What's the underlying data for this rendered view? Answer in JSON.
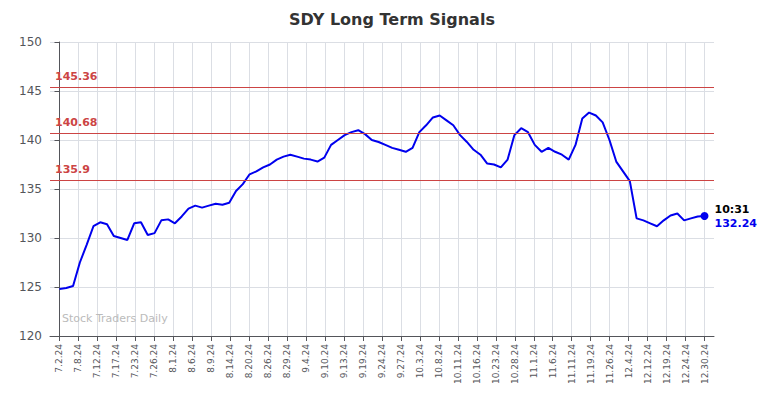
{
  "chart_data": {
    "type": "line",
    "title": "SDY Long Term Signals",
    "color": "#0000ee",
    "x": [
      0,
      0.357895,
      0.715789,
      1.073684,
      1.431579,
      1.789474,
      2.147368,
      2.505263,
      2.863158,
      3.221053,
      3.578947,
      3.936842,
      4.294737,
      4.652632,
      5.010526,
      5.368421,
      5.726316,
      6.084211,
      6.442105,
      6.8,
      7.157895,
      7.515789,
      7.873684,
      8.231579,
      8.589474,
      8.947368,
      9.305263,
      9.663158,
      10.021053,
      10.378947,
      10.736842,
      11.094737,
      11.452632,
      11.810526,
      12.168421,
      12.526316,
      12.884211,
      13.242105,
      13.6,
      13.957895,
      14.315789,
      14.673684,
      15.031579,
      15.389474,
      15.747368,
      16.105263,
      16.463158,
      16.821053,
      17.178947,
      17.536842,
      17.894737,
      18.252632,
      18.610526,
      18.968421,
      19.326316,
      19.684211,
      20.042105,
      20.4,
      20.757895,
      21.115789,
      21.473684,
      21.831579,
      22.189474,
      22.547368,
      22.905263,
      23.263158,
      23.621053,
      23.978947,
      24.336842,
      24.694737,
      25.052632,
      25.410526,
      25.768421,
      26.126316,
      26.484211,
      26.842105,
      27.2,
      27.557895,
      27.915789,
      28.273684,
      28.631579,
      28.989474,
      29.347368,
      29.705263,
      30.063158,
      30.421053,
      30.778947,
      31.136842,
      31.494737,
      31.852632,
      32.210526,
      32.568421,
      32.926316,
      33.284211,
      33.642105,
      34
    ],
    "values": [
      124.8,
      124.9,
      125.1,
      127.5,
      129.3,
      131.2,
      131.6,
      131.4,
      130.2,
      130.0,
      129.8,
      131.5,
      131.6,
      130.3,
      130.5,
      131.8,
      131.9,
      131.5,
      132.2,
      133.0,
      133.3,
      133.1,
      133.3,
      133.5,
      133.4,
      133.6,
      134.8,
      135.5,
      136.5,
      136.8,
      137.2,
      137.5,
      138.0,
      138.3,
      138.5,
      138.3,
      138.1,
      138.0,
      137.8,
      138.2,
      139.5,
      140.0,
      140.5,
      140.8,
      141.0,
      140.6,
      140.0,
      139.8,
      139.5,
      139.2,
      139.0,
      138.8,
      139.2,
      140.8,
      141.5,
      142.3,
      142.5,
      142.0,
      141.5,
      140.5,
      139.8,
      139.0,
      138.5,
      137.6,
      137.5,
      137.2,
      138.0,
      140.5,
      141.2,
      140.8,
      139.5,
      138.8,
      139.2,
      138.8,
      138.5,
      138.0,
      139.5,
      142.2,
      142.8,
      142.5,
      141.8,
      140.0,
      137.8,
      136.8,
      135.8,
      132.0,
      131.8,
      131.5,
      131.2,
      131.8,
      132.3,
      132.5,
      131.8,
      132.0,
      132.2,
      132.24
    ],
    "xlim": [
      -0.5,
      34.5
    ],
    "xticks": [
      {
        "value": 0,
        "label": "7.2.24"
      },
      {
        "value": 1,
        "label": "7.8.24"
      },
      {
        "value": 2,
        "label": "7.12.24"
      },
      {
        "value": 3,
        "label": "7.17.24"
      },
      {
        "value": 4,
        "label": "7.23.24"
      },
      {
        "value": 5,
        "label": "7.26.24"
      },
      {
        "value": 6,
        "label": "8.1.24"
      },
      {
        "value": 7,
        "label": "8.6.24"
      },
      {
        "value": 8,
        "label": "8.9.24"
      },
      {
        "value": 9,
        "label": "8.14.24"
      },
      {
        "value": 10,
        "label": "8.20.24"
      },
      {
        "value": 11,
        "label": "8.26.24"
      },
      {
        "value": 12,
        "label": "8.29.24"
      },
      {
        "value": 13,
        "label": "9.4.24"
      },
      {
        "value": 14,
        "label": "9.10.24"
      },
      {
        "value": 15,
        "label": "9.13.24"
      },
      {
        "value": 16,
        "label": "9.19.24"
      },
      {
        "value": 17,
        "label": "9.24.24"
      },
      {
        "value": 18,
        "label": "9.27.24"
      },
      {
        "value": 19,
        "label": "10.3.24"
      },
      {
        "value": 20,
        "label": "10.8.24"
      },
      {
        "value": 21,
        "label": "10.11.24"
      },
      {
        "value": 22,
        "label": "10.16.24"
      },
      {
        "value": 23,
        "label": "10.23.24"
      },
      {
        "value": 24,
        "label": "10.28.24"
      },
      {
        "value": 25,
        "label": "11.1.24"
      },
      {
        "value": 26,
        "label": "11.6.24"
      },
      {
        "value": 27,
        "label": "11.11.24"
      },
      {
        "value": 28,
        "label": "11.19.24"
      },
      {
        "value": 29,
        "label": "11.26.24"
      },
      {
        "value": 30,
        "label": "12.4.24"
      },
      {
        "value": 31,
        "label": "12.12.24"
      },
      {
        "value": 32,
        "label": "12.19.24"
      },
      {
        "value": 33,
        "label": "12.24.24"
      },
      {
        "value": 34,
        "label": "12.30.24"
      }
    ],
    "ylim": [
      120,
      150
    ],
    "yticks": [
      120,
      125,
      130,
      135,
      140,
      145,
      150
    ],
    "grid": true,
    "hlines": {
      "values": [
        145.36,
        140.68,
        135.9
      ],
      "color": "#cc4444"
    },
    "last_point": {
      "label": "10:31",
      "value": 132.24
    },
    "watermark": "Stock Traders Daily"
  }
}
